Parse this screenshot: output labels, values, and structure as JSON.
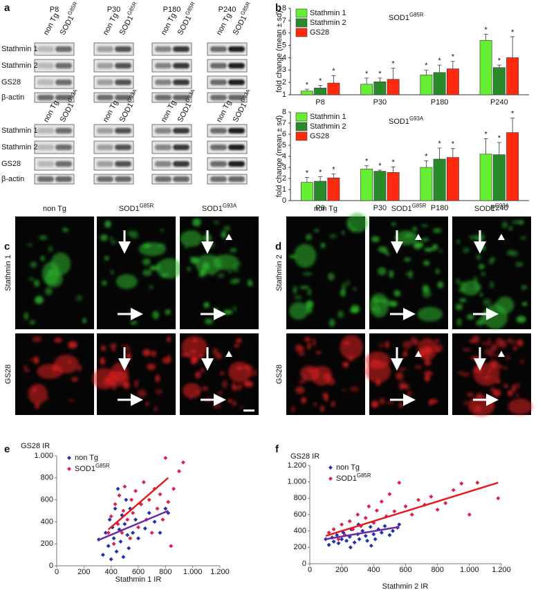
{
  "panel_letters": [
    "a",
    "b",
    "c",
    "d",
    "e",
    "f"
  ],
  "blots": [
    {
      "timepoints": [
        "P8",
        "P30",
        "P180",
        "P240"
      ],
      "lanes": [
        {
          "base": "non Tg"
        },
        {
          "base": "SOD1",
          "sup": "G85R"
        }
      ],
      "rows": [
        "Stathmin 1",
        "Stathmin 2",
        "GS28",
        "β-actin"
      ]
    },
    {
      "lanes": [
        {
          "base": "non Tg"
        },
        {
          "base": "SOD1",
          "sup": "G93A"
        }
      ],
      "rows": [
        "Stathmin 1",
        "Stathmin 2",
        "GS28",
        "β-actin"
      ]
    }
  ],
  "micrographs": [
    {
      "columns": [
        {
          "base": "non Tg"
        },
        {
          "base": "SOD1",
          "sup": "G85R"
        },
        {
          "base": "SOD1",
          "sup": "G93A"
        }
      ],
      "rows": [
        {
          "text": "Stathmin 1",
          "color": "#2db82d"
        },
        {
          "text": "GS28",
          "color": "#e02020"
        }
      ]
    },
    {
      "columns": [
        {
          "base": "non Tg"
        },
        {
          "base": "SOD1",
          "sup": "G85R"
        },
        {
          "base": "SOD1",
          "sup": "G93A"
        }
      ],
      "rows": [
        {
          "text": "Stathmin 2",
          "color": "#2db82d"
        },
        {
          "text": "GS28",
          "color": "#e02020"
        }
      ]
    }
  ],
  "chart_data": [
    {
      "type": "bar",
      "title": {
        "base": "SOD1",
        "sup": "G85R"
      },
      "y_label": "fold change (mean ± sd)",
      "categories": [
        "P8",
        "P30",
        "P180",
        "P240"
      ],
      "ylim": [
        1,
        8
      ],
      "yticks": [
        1,
        2,
        3,
        4,
        5,
        6,
        7,
        8
      ],
      "series": [
        {
          "name": "Stathmin 1",
          "color": "#66ee33",
          "values": [
            1.3,
            1.85,
            2.6,
            5.4
          ],
          "errors": [
            0.15,
            0.5,
            0.4,
            0.5
          ],
          "annotations": [
            "*",
            "*",
            "*",
            "*"
          ]
        },
        {
          "name": "Stathmin 2",
          "color": "#2a8a2a",
          "values": [
            1.55,
            2.05,
            2.8,
            3.2
          ],
          "errors": [
            0.2,
            0.3,
            0.6,
            0.2
          ],
          "annotations": [
            "*",
            "*",
            "*",
            "*"
          ]
        },
        {
          "name": "GS28",
          "color": "#ff2a10",
          "values": [
            1.95,
            2.25,
            3.1,
            4.0
          ],
          "errors": [
            0.6,
            0.9,
            0.6,
            1.7
          ],
          "annotations": [
            "*",
            "*",
            "*",
            "*"
          ]
        }
      ]
    },
    {
      "type": "bar",
      "title": {
        "base": "SOD1",
        "sup": "G93A"
      },
      "y_label": "fold change (mean ± sd)",
      "categories": [
        "P8",
        "P30",
        "P180",
        "P240"
      ],
      "ylim": [
        0,
        8
      ],
      "yticks": [
        0,
        1,
        2,
        3,
        4,
        5,
        6,
        7,
        8
      ],
      "series": [
        {
          "name": "Stathmin 1",
          "color": "#66ee33",
          "values": [
            1.65,
            2.85,
            3.0,
            4.2
          ],
          "errors": [
            0.45,
            0.3,
            0.6,
            1.4
          ],
          "annotations": [
            "*",
            "*",
            "*",
            "*"
          ]
        },
        {
          "name": "Stathmin 2",
          "color": "#2a8a2a",
          "values": [
            1.75,
            2.65,
            3.75,
            4.15
          ],
          "errors": [
            0.4,
            0.1,
            1.0,
            1.1
          ],
          "annotations": [
            "*",
            "*",
            "*",
            "*"
          ]
        },
        {
          "name": "GS28",
          "color": "#ff2a10",
          "values": [
            2.05,
            2.55,
            3.9,
            6.15
          ],
          "errors": [
            0.35,
            0.5,
            0.8,
            1.3
          ],
          "annotations": [
            "*",
            "*",
            "*",
            "*"
          ]
        }
      ]
    },
    {
      "type": "scatter",
      "title": "GS28 IR",
      "x_label": "Stathmin 1 IR",
      "xlim": [
        0,
        1200
      ],
      "xticks": [
        0,
        200,
        400,
        600,
        800,
        {
          "value": 1000,
          "label": "1.000"
        },
        {
          "value": 1200,
          "label": "1.200"
        }
      ],
      "ylim": [
        0,
        1000
      ],
      "yticks": [
        0,
        200,
        400,
        600,
        800,
        {
          "value": 1000,
          "label": "1.000"
        }
      ],
      "series": [
        {
          "name": {
            "base": "non Tg"
          },
          "color": "#2233aa",
          "x": [
            310,
            340,
            360,
            380,
            390,
            400,
            410,
            420,
            430,
            440,
            450,
            460,
            470,
            480,
            490,
            500,
            510,
            520,
            530,
            540,
            560,
            580,
            600,
            620,
            650,
            680,
            720,
            760,
            800,
            820
          ],
          "y": [
            240,
            100,
            300,
            180,
            420,
            60,
            350,
            250,
            520,
            130,
            700,
            330,
            220,
            460,
            80,
            380,
            600,
            280,
            160,
            520,
            300,
            420,
            250,
            560,
            340,
            480,
            400,
            300,
            520,
            480
          ]
        },
        {
          "name": {
            "base": "SOD1",
            "sup": "G85R"
          },
          "color": "#e0204a",
          "x": [
            380,
            400,
            420,
            430,
            450,
            460,
            480,
            490,
            500,
            520,
            540,
            550,
            560,
            580,
            600,
            620,
            640,
            660,
            680,
            700,
            720,
            740,
            760,
            780,
            800,
            820,
            860,
            900,
            930,
            840
          ],
          "y": [
            300,
            450,
            200,
            560,
            380,
            640,
            300,
            500,
            720,
            420,
            250,
            600,
            480,
            680,
            350,
            560,
            760,
            420,
            600,
            300,
            700,
            520,
            650,
            420,
            980,
            580,
            700,
            860,
            940,
            180
          ]
        }
      ],
      "trendlines": [
        {
          "color": "#6a2aa8",
          "x": [
            300,
            820
          ],
          "y": [
            230,
            500
          ]
        },
        {
          "color": "#e41a1c",
          "x": [
            380,
            820
          ],
          "y": [
            330,
            800
          ]
        }
      ]
    },
    {
      "type": "scatter",
      "title": "GS28 IR",
      "x_label": "Stathmin 2 IR",
      "xlim": [
        0,
        1200
      ],
      "xticks": [
        0,
        200,
        400,
        600,
        800,
        {
          "value": 1000,
          "label": "1.000"
        },
        {
          "value": 1200,
          "label": "1.200"
        }
      ],
      "ylim": [
        0,
        1200
      ],
      "yticks": [
        0,
        200,
        400,
        600,
        800,
        {
          "value": 1000,
          "label": "1.000"
        },
        {
          "value": 1200,
          "label": "1.200"
        }
      ],
      "series": [
        {
          "name": {
            "base": "non Tg"
          },
          "color": "#2233aa",
          "x": [
            100,
            120,
            140,
            150,
            170,
            180,
            200,
            210,
            230,
            250,
            260,
            280,
            300,
            310,
            330,
            350,
            360,
            380,
            400,
            410,
            430,
            450,
            470,
            500,
            520,
            550,
            560,
            385,
            255,
            305
          ],
          "y": [
            300,
            230,
            320,
            270,
            350,
            250,
            300,
            380,
            280,
            330,
            420,
            260,
            360,
            300,
            400,
            340,
            280,
            450,
            360,
            300,
            420,
            380,
            460,
            350,
            400,
            440,
            480,
            220,
            200,
            480
          ]
        },
        {
          "name": {
            "base": "SOD1",
            "sup": "G85R"
          },
          "color": "#e0204a",
          "x": [
            120,
            150,
            180,
            200,
            220,
            250,
            270,
            300,
            320,
            350,
            370,
            400,
            420,
            450,
            480,
            500,
            530,
            560,
            600,
            640,
            680,
            720,
            760,
            800,
            850,
            900,
            950,
            1000,
            1180,
            1050
          ],
          "y": [
            380,
            420,
            300,
            480,
            350,
            520,
            420,
            600,
            460,
            560,
            700,
            500,
            650,
            760,
            580,
            850,
            640,
            990,
            700,
            600,
            780,
            720,
            820,
            660,
            740,
            900,
            980,
            600,
            800,
            990
          ]
        }
      ],
      "trendlines": [
        {
          "color": "#6a2aa8",
          "x": [
            100,
            560
          ],
          "y": [
            300,
            450
          ]
        },
        {
          "color": "#e41a1c",
          "x": [
            100,
            1180
          ],
          "y": [
            340,
            990
          ]
        }
      ]
    }
  ]
}
